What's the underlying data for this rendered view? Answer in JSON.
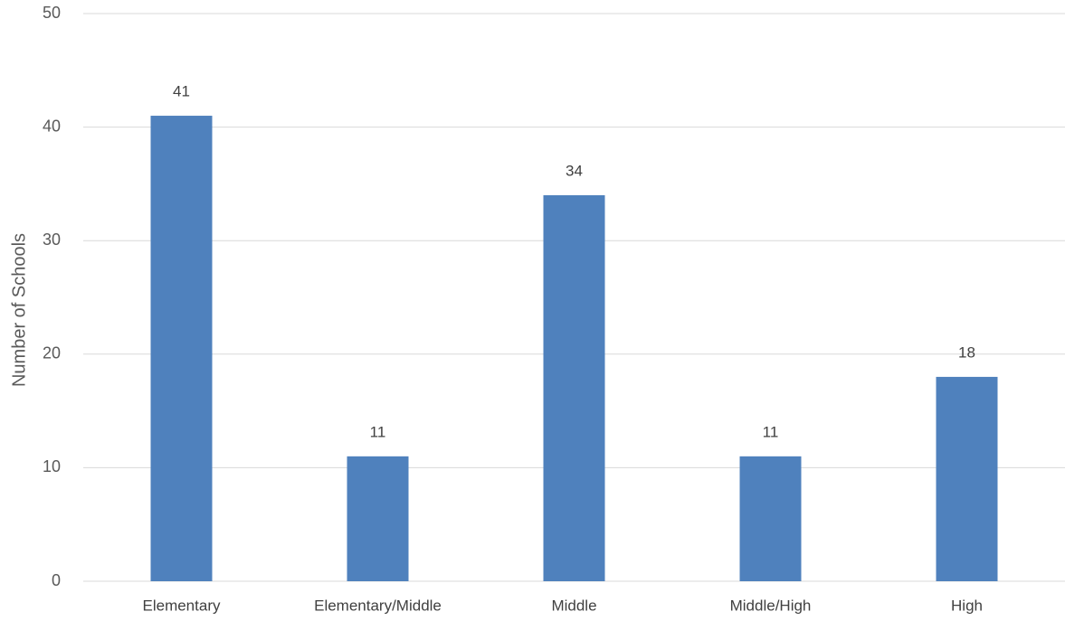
{
  "chart_data": {
    "type": "bar",
    "categories": [
      "Elementary",
      "Elementary/Middle",
      "Middle",
      "Middle/High",
      "High"
    ],
    "values": [
      41,
      11,
      34,
      11,
      18
    ],
    "title": "",
    "xlabel": "",
    "ylabel": "Number of Schools",
    "ylim": [
      0,
      50
    ],
    "yticks": [
      0,
      10,
      20,
      30,
      40,
      50
    ],
    "data_labels": true,
    "grid": true,
    "legend": "none",
    "bar_color": "#4f81bd"
  }
}
